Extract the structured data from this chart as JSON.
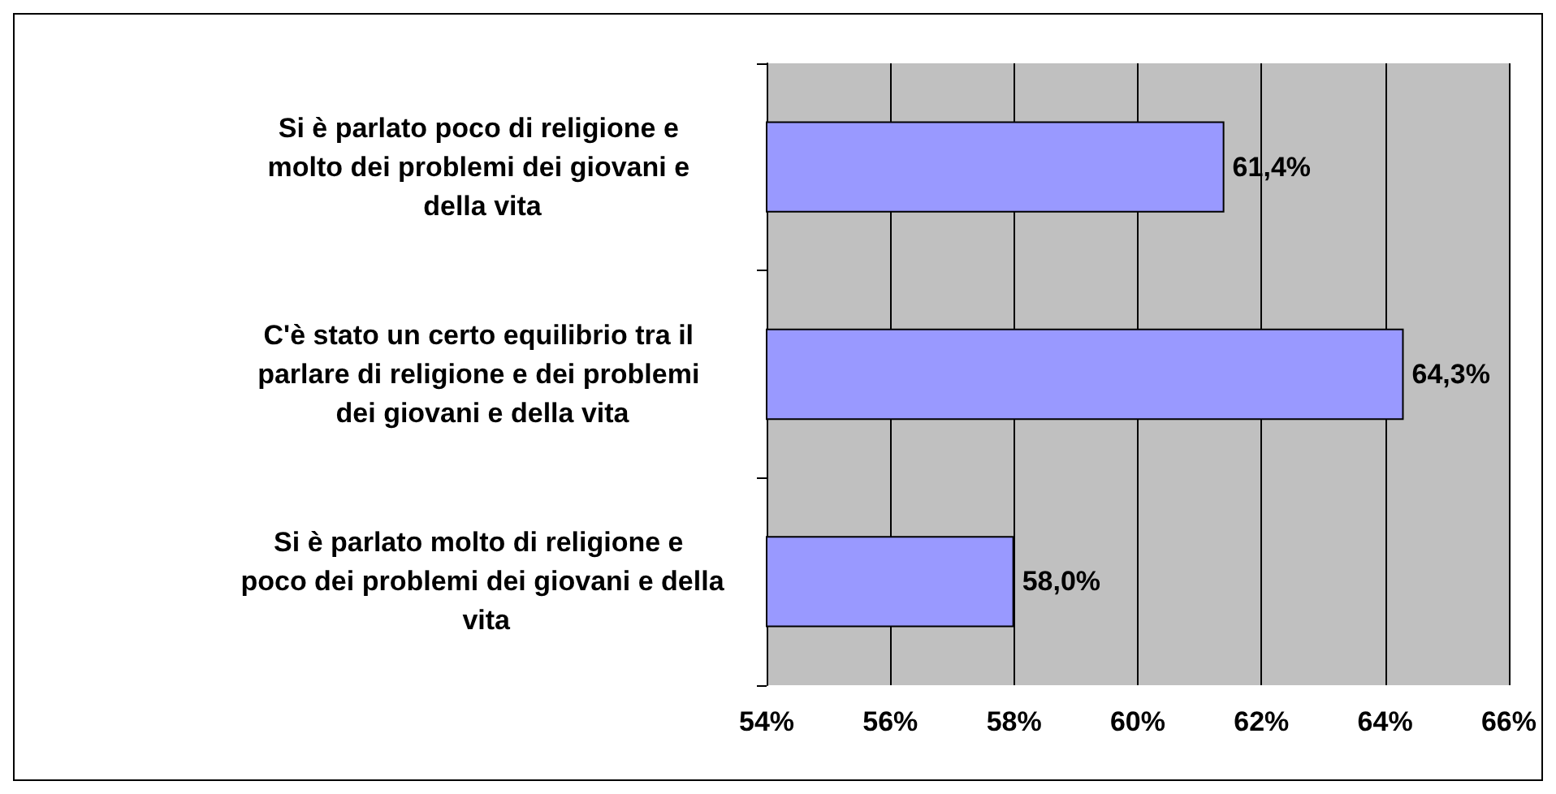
{
  "chart_data": {
    "type": "bar",
    "orientation": "horizontal",
    "categories": [
      "Si è parlato poco di religione e molto dei problemi dei giovani e della vita",
      "C'è stato un certo equilibrio tra il parlare di religione e dei problemi dei giovani e della vita",
      "Si è parlato molto di religione e poco dei problemi dei giovani e della vita"
    ],
    "values": [
      61.4,
      64.3,
      58.0
    ],
    "value_labels": [
      "61,4%",
      "64,3%",
      "58,0%"
    ],
    "color": "#9999ff",
    "xlim": [
      54,
      66
    ],
    "xticks": [
      {
        "value": 54,
        "label": "54%"
      },
      {
        "value": 56,
        "label": "56%"
      },
      {
        "value": 58,
        "label": "58%"
      },
      {
        "value": 60,
        "label": "60%"
      },
      {
        "value": 62,
        "label": "62%"
      },
      {
        "value": 64,
        "label": "64%"
      },
      {
        "value": 66,
        "label": "66%"
      }
    ],
    "grid": "x"
  }
}
